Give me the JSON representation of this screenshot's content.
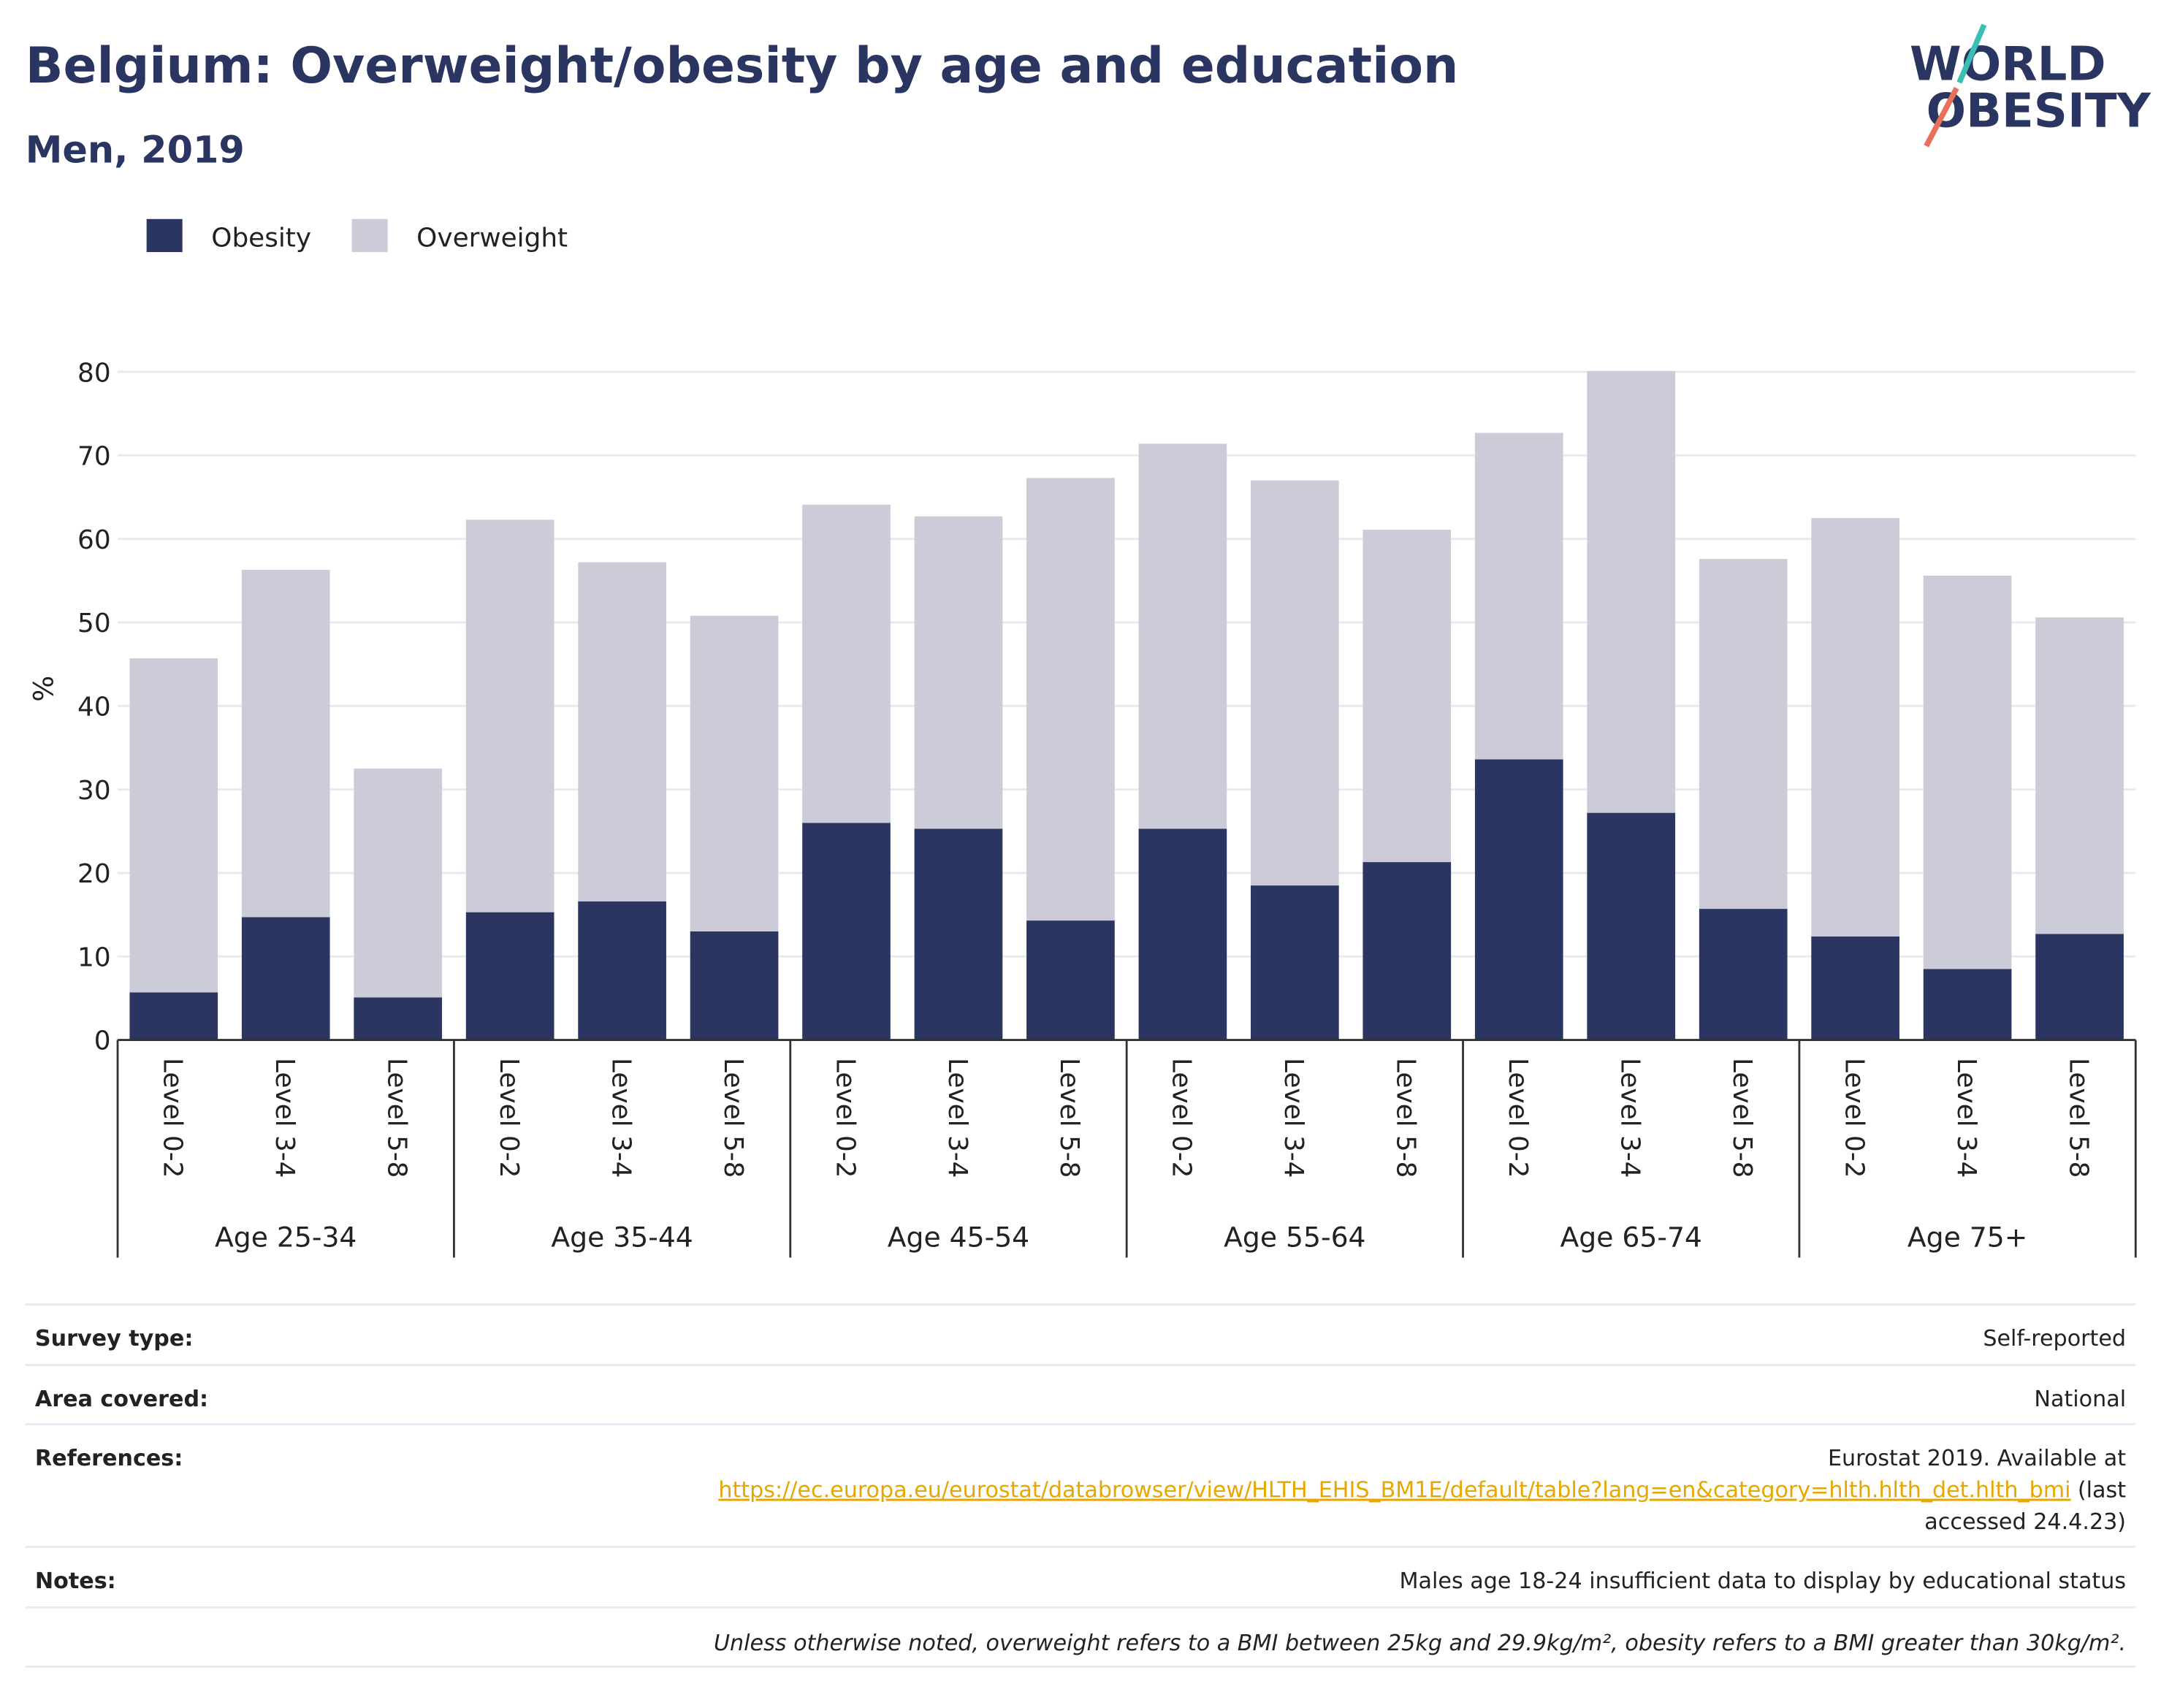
{
  "chart_data": {
    "type": "stacked_bar",
    "title": "Belgium: Overweight/obesity by age and education",
    "subtitle": "Men, 2019",
    "y_label": "%",
    "groups": [
      "Age 25-34",
      "Age 35-44",
      "Age 45-54",
      "Age 55-64",
      "Age 65-74",
      "Age 75+"
    ],
    "categories": [
      "Level 0-2",
      "Level 3-4",
      "Level 5-8",
      "Level 0-2",
      "Level 3-4",
      "Level 5-8",
      "Level 0-2",
      "Level 3-4",
      "Level 5-8",
      "Level 0-2",
      "Level 3-4",
      "Level 5-8",
      "Level 0-2",
      "Level 3-4",
      "Level 5-8",
      "Level 0-2",
      "Level 3-4",
      "Level 5-8"
    ],
    "series": [
      {
        "name": "Obesity",
        "color": "#2a3561",
        "values": [
          5.7,
          14.7,
          5.1,
          15.3,
          16.6,
          13.0,
          26.0,
          25.3,
          14.3,
          25.3,
          18.5,
          21.3,
          33.6,
          27.2,
          15.7,
          12.4,
          8.5,
          12.7
        ]
      },
      {
        "name": "Overweight",
        "color": "#cbccd8",
        "values": [
          40.0,
          41.6,
          27.4,
          47.0,
          40.6,
          37.8,
          38.1,
          37.4,
          53.0,
          46.1,
          48.5,
          39.8,
          39.1,
          52.9,
          41.9,
          50.1,
          47.1,
          37.9
        ]
      }
    ],
    "ylim": [
      0,
      80
    ],
    "yticks": [
      0,
      10,
      20,
      30,
      40,
      50,
      60,
      70,
      80
    ],
    "grid": true,
    "legend": "top-left"
  },
  "logo": {
    "line1": "WORLD",
    "line2": "OBESITY"
  },
  "footer": {
    "rows": [
      {
        "label": "Survey type:",
        "value": "Self-reported"
      },
      {
        "label": "Area covered:",
        "value": "National"
      }
    ],
    "references": {
      "label": "References:",
      "line1": "Eurostat 2019. Available at",
      "url": "https://ec.europa.eu/eurostat/databrowser/view/HLTH_EHIS_BM1E/default/table?lang=en&category=hlth.hlth_det.hlth_bmi",
      "after_url": "(last",
      "line3": "accessed 24.4.23)"
    },
    "notes": {
      "label": "Notes:",
      "value": "Males age 18-24 insufficient data to display by educational status"
    },
    "definition": "Unless otherwise noted, overweight refers to a BMI between 25kg and 29.9kg/m², obesity refers to a BMI greater than 30kg/m²."
  }
}
